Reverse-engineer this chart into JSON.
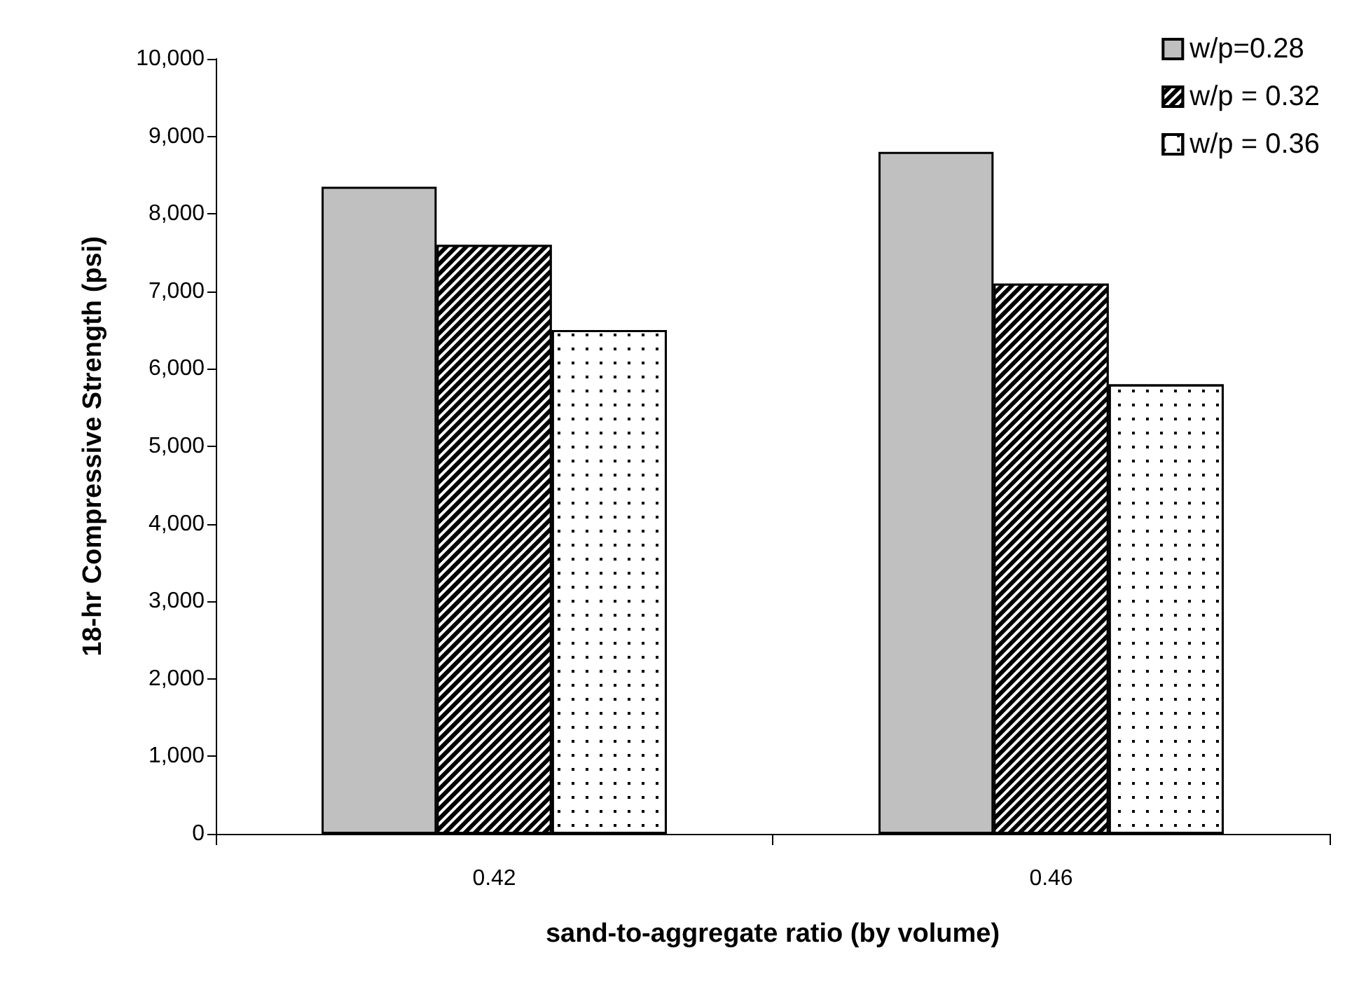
{
  "chart_data": {
    "type": "bar",
    "xlabel": "sand-to-aggregate ratio (by volume)",
    "ylabel": "18-hr Compressive Strength (psi)",
    "categories": [
      "0.42",
      "0.46"
    ],
    "series": [
      {
        "name": "w/p=0.28",
        "color": "#c0c0c0",
        "values": [
          8350,
          8800
        ]
      },
      {
        "name": "w/p = 0.32",
        "color": "#000000",
        "values": [
          7600,
          7100
        ]
      },
      {
        "name": "w/p = 0.36",
        "color": "#ffffff",
        "values": [
          6500,
          5800
        ]
      }
    ],
    "ylim": [
      0,
      10000
    ],
    "yticks": [
      0,
      {
        "value": 1000,
        "label": "1,000"
      },
      {
        "value": 2000,
        "label": "2,000"
      },
      {
        "value": 3000,
        "label": "3,000"
      },
      {
        "value": 4000,
        "label": "4,000"
      },
      {
        "value": 5000,
        "label": "5,000"
      },
      {
        "value": 6000,
        "label": "6,000"
      },
      {
        "value": 7000,
        "label": "7,000"
      },
      {
        "value": 8000,
        "label": "8,000"
      },
      {
        "value": 9000,
        "label": "9,000"
      },
      {
        "value": 10000,
        "label": "10,000"
      }
    ],
    "grid": false,
    "legend": "top right"
  }
}
